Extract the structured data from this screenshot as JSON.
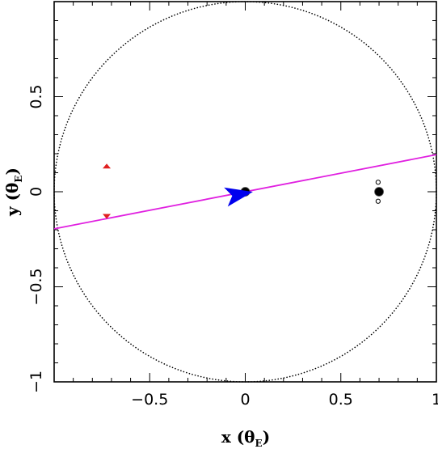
{
  "chart_data": {
    "type": "scatter",
    "xlabel": {
      "main": "x (θ",
      "sub": "E",
      "close": ")"
    },
    "ylabel": {
      "main": "y (θ",
      "sub": "E",
      "close": ")"
    },
    "xlim": [
      -1,
      1
    ],
    "ylim": [
      -1,
      1
    ],
    "x_ticks": [
      {
        "value": -0.5,
        "label": "−0.5"
      },
      {
        "value": 0,
        "label": "0"
      },
      {
        "value": 0.5,
        "label": "0.5"
      },
      {
        "value": 1,
        "label": "1"
      }
    ],
    "y_ticks": [
      {
        "value": -1,
        "label": "−1"
      },
      {
        "value": -0.5,
        "label": "−0.5"
      },
      {
        "value": 0,
        "label": "0"
      },
      {
        "value": 0.5,
        "label": "0.5"
      }
    ],
    "einstein_ring": {
      "radius": 1,
      "style": "dotted",
      "color": "#000000"
    },
    "source_trajectory": {
      "color": "#e020e0",
      "start": [
        -1.0,
        -0.195
      ],
      "end": [
        1.0,
        0.195
      ]
    },
    "source": {
      "color": "#0000ee",
      "position": [
        -0.035,
        -0.015
      ],
      "direction": [
        1.0,
        0.195
      ]
    },
    "lens_components": [
      {
        "position": [
          0.0,
          0.0
        ],
        "role": "primary"
      },
      {
        "position": [
          0.7,
          0.0
        ],
        "role": "secondary"
      }
    ],
    "satellite_points": [
      [
        0.695,
        0.05
      ],
      [
        0.695,
        -0.05
      ]
    ],
    "images": {
      "color": "#e02020",
      "points": [
        {
          "position": [
            -0.725,
            0.135
          ],
          "orientation": "up"
        },
        {
          "position": [
            -0.725,
            -0.13
          ],
          "orientation": "down"
        }
      ]
    }
  }
}
